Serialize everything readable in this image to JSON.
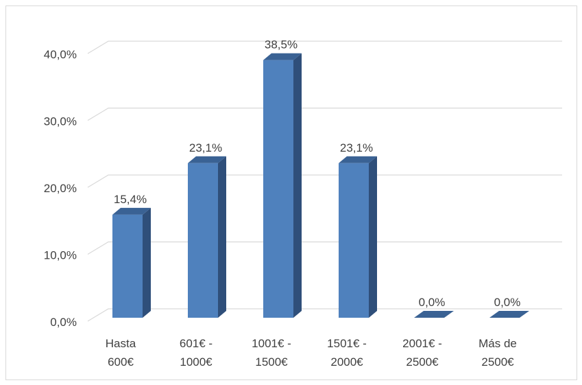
{
  "chart_data": {
    "type": "bar",
    "style": "3d-column",
    "categories": [
      [
        "Hasta",
        "600€"
      ],
      [
        "601€ -",
        "1000€"
      ],
      [
        "1001€ -",
        "1500€"
      ],
      [
        "1501€ -",
        "2000€"
      ],
      [
        "2001€ -",
        "2500€"
      ],
      [
        "Más de",
        "2500€"
      ]
    ],
    "values": [
      15.4,
      23.1,
      38.5,
      23.1,
      0.0,
      0.0
    ],
    "data_labels": [
      "15,4%",
      "23,1%",
      "38,5%",
      "23,1%",
      "0,0%",
      "0,0%"
    ],
    "y_ticks": [
      0,
      10,
      20,
      30,
      40
    ],
    "y_tick_labels": [
      "0,0%",
      "10,0%",
      "20,0%",
      "30,0%",
      "40,0%"
    ],
    "ylim": [
      0,
      40
    ],
    "grid": true,
    "legend": "none",
    "colors": {
      "bar_front": "#4f81bd",
      "bar_side": "#2f4f7a",
      "bar_top": "#3a6294",
      "gridline": "#d9d9d9",
      "text": "#404040"
    }
  }
}
